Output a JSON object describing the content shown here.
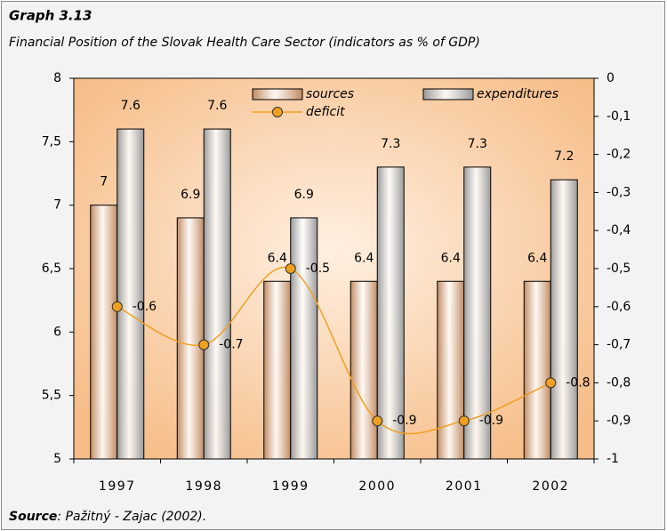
{
  "chart_data": {
    "type": "bar",
    "title": "Graph 3.13",
    "subtitle": "Financial Position of the Slovak Health Care Sector (indicators as % of GDP)",
    "source_label": "Source",
    "source_text": ": Pažitný - Zajac (2002).",
    "categories": [
      "1997",
      "1998",
      "1999",
      "2000",
      "2001",
      "2002"
    ],
    "series": [
      {
        "name": "sources",
        "color": "#c08a62",
        "type": "bar",
        "values": [
          7,
          6.9,
          6.4,
          6.4,
          6.4,
          6.4
        ]
      },
      {
        "name": "expenditures",
        "color": "#9a9a9a",
        "type": "bar",
        "values": [
          7.6,
          7.6,
          6.9,
          7.3,
          7.3,
          7.2
        ]
      },
      {
        "name": "deficit",
        "color": "#f0a020",
        "type": "line",
        "axis": "y2",
        "values": [
          -0.6,
          -0.7,
          -0.5,
          -0.9,
          -0.9,
          -0.8
        ]
      }
    ],
    "ylim": [
      5,
      8
    ],
    "yticks": [
      5,
      {
        "value": 5.5,
        "label": "5,5"
      },
      6,
      {
        "value": 6.5,
        "label": "6,5"
      },
      7,
      {
        "value": 7.5,
        "label": "7,5"
      },
      8
    ],
    "y2lim": [
      -1,
      0
    ],
    "y2ticks": [
      0,
      {
        "value": -0.1,
        "label": "-0,1"
      },
      {
        "value": -0.2,
        "label": "-0,2"
      },
      {
        "value": -0.3,
        "label": "-0,3"
      },
      {
        "value": -0.4,
        "label": "-0,4"
      },
      {
        "value": -0.5,
        "label": "-0,5"
      },
      {
        "value": -0.6,
        "label": "-0,6"
      },
      {
        "value": -0.7,
        "label": "-0,7"
      },
      {
        "value": -0.8,
        "label": "-0,8"
      },
      {
        "value": -0.9,
        "label": "-0,9"
      },
      -1
    ],
    "legend": "top",
    "grid": false
  }
}
